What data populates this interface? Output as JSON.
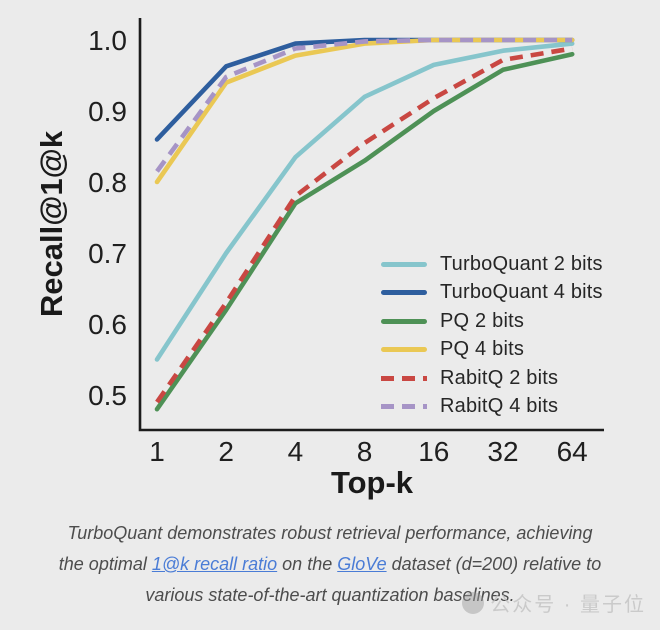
{
  "chart_data": {
    "type": "line",
    "title": "",
    "xlabel": "Top-k",
    "ylabel": "Recall@1@k",
    "x": [
      1,
      2,
      4,
      8,
      16,
      32,
      64
    ],
    "xticks": [
      "1",
      "2",
      "4",
      "8",
      "16",
      "32",
      "64"
    ],
    "x_scale": "log2",
    "yticks": [
      "0.5",
      "0.6",
      "0.7",
      "0.8",
      "0.9",
      "1.0"
    ],
    "ylim": [
      0.45,
      1.03
    ],
    "grid": false,
    "legend_position": "lower right",
    "axis_color": "#1c1c1c",
    "tick_label_color": "#1f1f1f",
    "series": [
      {
        "name": "TurboQuant 2 bits",
        "color": "#86c5cc",
        "dash": false,
        "values": [
          0.55,
          0.7,
          0.835,
          0.92,
          0.965,
          0.985,
          0.995
        ]
      },
      {
        "name": "TurboQuant 4 bits",
        "color": "#2e5e9e",
        "dash": false,
        "values": [
          0.86,
          0.963,
          0.995,
          1.0,
          1.0,
          1.0,
          1.0
        ]
      },
      {
        "name": "PQ 2 bits",
        "color": "#4e9156",
        "dash": false,
        "values": [
          0.48,
          0.62,
          0.77,
          0.83,
          0.9,
          0.958,
          0.98
        ]
      },
      {
        "name": "PQ 4 bits",
        "color": "#eac854",
        "dash": false,
        "values": [
          0.8,
          0.94,
          0.978,
          0.995,
          1.0,
          1.0,
          1.0
        ]
      },
      {
        "name": "RabitQ 2 bits",
        "color": "#c94742",
        "dash": true,
        "values": [
          0.49,
          0.63,
          0.78,
          0.855,
          0.918,
          0.972,
          0.988
        ]
      },
      {
        "name": "RabitQ 4 bits",
        "color": "#a694c6",
        "dash": true,
        "values": [
          0.815,
          0.948,
          0.988,
          0.998,
          1.0,
          1.0,
          1.0
        ]
      }
    ]
  },
  "caption": {
    "lines": [
      [
        {
          "t": "TurboQuant demonstrates robust retrieval performance, achieving"
        }
      ],
      [
        {
          "t": "the optimal "
        },
        {
          "t": "1@k recall ratio",
          "link": true
        },
        {
          "t": " on the "
        },
        {
          "t": "GloVe",
          "link": true
        },
        {
          "t": " dataset (d=200) relative to"
        }
      ],
      [
        {
          "t": "various state-of-the-art quantization baselines."
        }
      ]
    ],
    "link_color": "#4a7cd6",
    "text_color": "#4d4d4d"
  },
  "watermark": {
    "text": "公众号 · 量子位"
  }
}
